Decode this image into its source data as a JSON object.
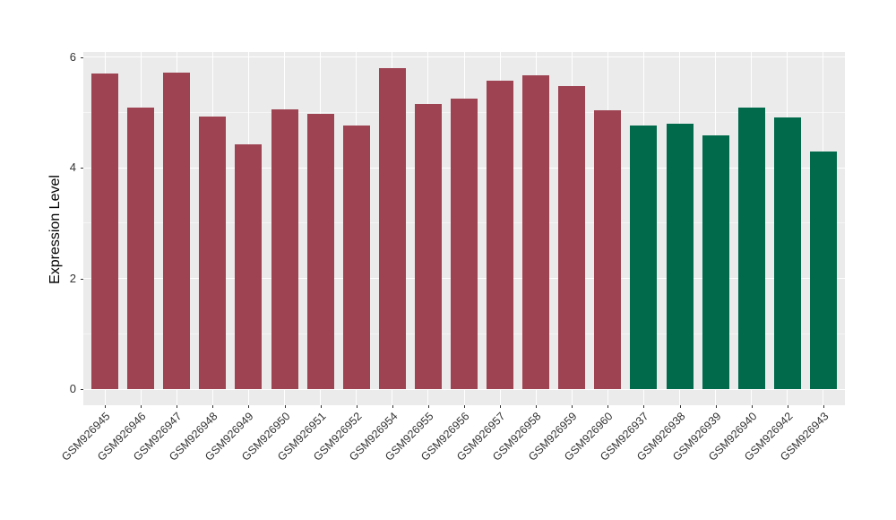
{
  "figure": {
    "background": "#FFFFFF",
    "panel_background": "#EBEBEB",
    "grid_color": "#FFFFFF",
    "axis_text_color": "#333333",
    "axis_title_color": "#000000"
  },
  "chart_data": {
    "type": "bar",
    "title": "",
    "xlabel": "",
    "ylabel": "Expression Level",
    "legend_position": "none",
    "grid": true,
    "x_tick_angle": 45,
    "categories": [
      "GSM926945",
      "GSM926946",
      "GSM926947",
      "GSM926948",
      "GSM926949",
      "GSM926950",
      "GSM926951",
      "GSM926952",
      "GSM926954",
      "GSM926955",
      "GSM926956",
      "GSM926957",
      "GSM926958",
      "GSM926959",
      "GSM926960",
      "GSM926937",
      "GSM926938",
      "GSM926939",
      "GSM926940",
      "GSM926942",
      "GSM926943"
    ],
    "values": [
      5.7,
      5.08,
      5.72,
      4.93,
      4.43,
      5.05,
      4.98,
      4.76,
      5.8,
      5.15,
      5.24,
      5.57,
      5.67,
      5.48,
      5.03,
      4.76,
      4.79,
      4.59,
      5.09,
      4.9,
      4.3
    ],
    "group_index": [
      0,
      0,
      0,
      0,
      0,
      0,
      0,
      0,
      0,
      0,
      0,
      0,
      0,
      0,
      0,
      1,
      1,
      1,
      1,
      1,
      1
    ],
    "group_colors": [
      "#9D4352",
      "#006A4B"
    ],
    "yticks_major": [
      0,
      2,
      4,
      6
    ],
    "yticks_minor": [
      1,
      3,
      5
    ],
    "ylim": [
      -0.29,
      6.09
    ]
  }
}
